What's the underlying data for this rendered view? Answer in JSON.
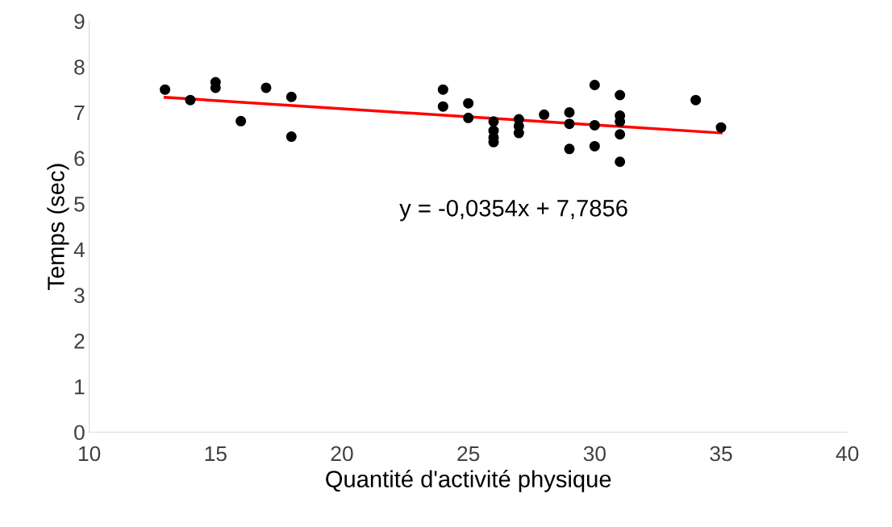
{
  "chart_data": {
    "type": "scatter",
    "xlabel": "Quantité d'activité physique",
    "ylabel": "Temps (sec)",
    "xlim": [
      10,
      40
    ],
    "ylim": [
      0,
      9
    ],
    "xticks": [
      10,
      15,
      20,
      25,
      30,
      35,
      40
    ],
    "yticks": [
      0,
      1,
      2,
      3,
      4,
      5,
      6,
      7,
      8,
      9
    ],
    "grid": false,
    "legend": false,
    "marker": "circle",
    "series": [
      {
        "color": "#000000",
        "x": [
          13,
          14,
          15,
          15,
          16,
          17,
          18,
          18,
          24,
          24,
          25,
          25,
          26,
          26,
          26,
          26,
          27,
          27,
          27,
          28,
          29,
          29,
          29,
          30,
          30,
          30,
          31,
          31,
          31,
          31,
          31,
          34,
          35
        ],
        "values": [
          7.5,
          7.27,
          7.66,
          7.54,
          6.81,
          7.54,
          7.34,
          6.47,
          7.5,
          7.13,
          7.2,
          6.88,
          6.8,
          6.6,
          6.45,
          6.35,
          6.85,
          6.7,
          6.55,
          6.95,
          7.0,
          6.75,
          6.2,
          7.6,
          6.72,
          6.26,
          7.38,
          6.93,
          6.8,
          6.52,
          5.92,
          7.27,
          6.67
        ]
      },
      {
        "type": "line",
        "color": "#ff0000",
        "marker": "none",
        "x": [
          13,
          35
        ],
        "values": [
          7.33,
          6.55
        ]
      }
    ],
    "annotations": [
      "y = -0,0354x + 7,7856"
    ]
  }
}
